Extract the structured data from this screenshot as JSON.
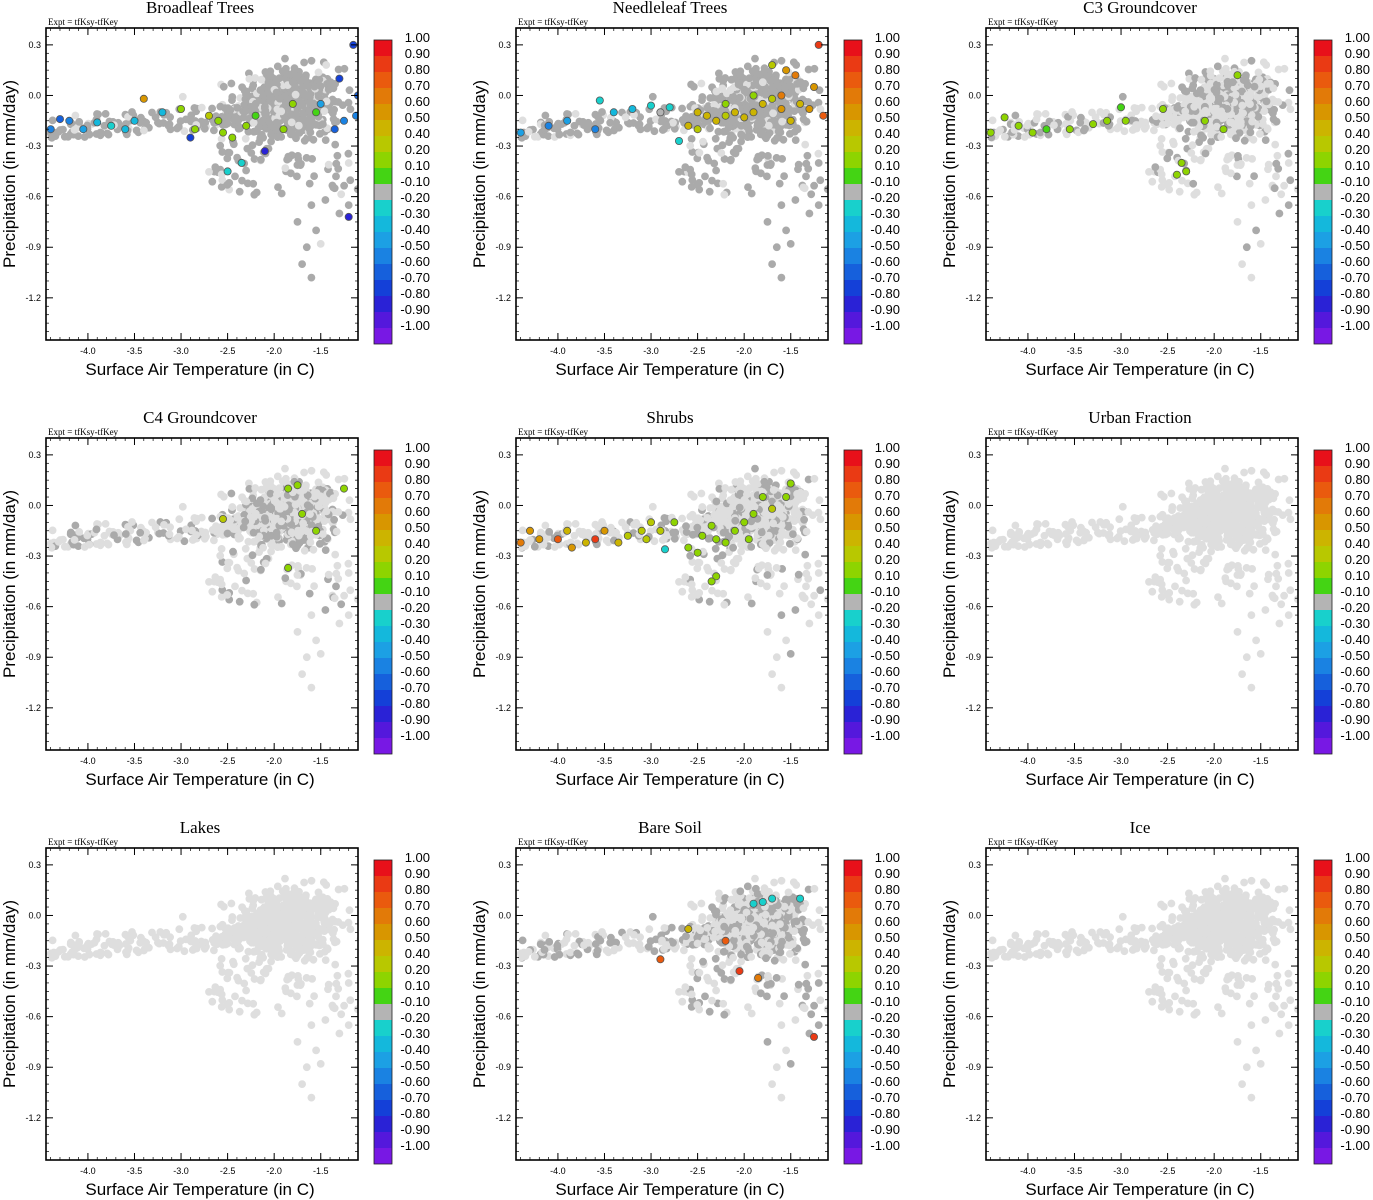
{
  "figure": {
    "experiment_label": "Expt = tfKsy-tfKey",
    "xlabel": "Surface Air Temperature (in C)",
    "ylabel": "Precipitation (in mm/day)",
    "colorbar": {
      "levels": [
        "1.00",
        "0.90",
        "0.80",
        "0.70",
        "0.60",
        "0.50",
        "0.40",
        "0.20",
        "0.10",
        "-0.10",
        "-0.20",
        "-0.30",
        "-0.40",
        "-0.50",
        "-0.60",
        "-0.70",
        "-0.80",
        "-0.90",
        "-1.00"
      ],
      "colors": [
        "#e8101a",
        "#ea3a14",
        "#ea5a0e",
        "#e27a08",
        "#d89600",
        "#ccb400",
        "#b8c800",
        "#8ed400",
        "#44d414",
        "#b4b4b4",
        "#18d0cc",
        "#14b8dc",
        "#1ca0e4",
        "#1a82e2",
        "#1660dc",
        "#1440d8",
        "#2a22d6",
        "#5418dc",
        "#7818e4"
      ]
    },
    "background_color": "#dedede",
    "neutral_color": "#aaaaaa"
  },
  "chart_data": [
    {
      "type": "scatter",
      "title": "Broadleaf Trees",
      "xlim": [
        -4.45,
        -1.1
      ],
      "ylim": [
        -1.45,
        0.4
      ],
      "xticks": [
        "-4.0",
        "-3.5",
        "-3.0",
        "-2.5",
        "-2.0",
        "-1.5"
      ],
      "yticks": [
        "0.3",
        "0.0",
        "-0.3",
        "-0.6",
        "-0.9",
        "-1.2"
      ],
      "xlabel": "Surface Air Temperature (in C)",
      "ylabel": "Precipitation (in mm/day)",
      "points": [
        [
          -4.4,
          -0.2,
          -0.55
        ],
        [
          -4.3,
          -0.14,
          -0.6
        ],
        [
          -4.2,
          -0.15,
          -0.5
        ],
        [
          -4.05,
          -0.2,
          -0.4
        ],
        [
          -3.9,
          -0.16,
          -0.3
        ],
        [
          -3.75,
          -0.18,
          -0.25
        ],
        [
          -3.6,
          -0.2,
          -0.3
        ],
        [
          -3.5,
          -0.15,
          -0.3
        ],
        [
          -3.4,
          -0.02,
          0.6
        ],
        [
          -3.2,
          -0.1,
          -0.3
        ],
        [
          -3.0,
          -0.08,
          0.2
        ],
        [
          -2.85,
          -0.2,
          0.15
        ],
        [
          -2.9,
          -0.25,
          -0.7
        ],
        [
          -2.7,
          -0.12,
          0.3
        ],
        [
          -2.6,
          -0.15,
          0.2
        ],
        [
          -2.55,
          -0.22,
          0.15
        ],
        [
          -2.45,
          -0.25,
          0.12
        ],
        [
          -2.3,
          -0.18,
          0.15
        ],
        [
          -2.2,
          -0.12,
          0.1
        ],
        [
          -2.35,
          -0.4,
          -0.2
        ],
        [
          -2.5,
          -0.45,
          -0.2
        ],
        [
          -2.1,
          -0.33,
          -0.8
        ],
        [
          -1.9,
          -0.2,
          0.12
        ],
        [
          -1.8,
          -0.05,
          0.2
        ],
        [
          -1.55,
          -0.1,
          0.1
        ],
        [
          -1.5,
          -0.05,
          -0.4
        ],
        [
          -1.35,
          -0.2,
          -0.6
        ],
        [
          -1.25,
          -0.15,
          -0.5
        ],
        [
          -1.2,
          -0.72,
          -0.85
        ],
        [
          -1.15,
          0.3,
          -0.75
        ],
        [
          -1.1,
          0.0,
          -0.6
        ],
        [
          -1.12,
          -0.12,
          -0.5
        ],
        [
          -1.3,
          0.1,
          -0.7
        ]
      ]
    },
    {
      "type": "scatter",
      "title": "Needleleaf Trees",
      "xlim": [
        -4.45,
        -1.1
      ],
      "ylim": [
        -1.45,
        0.4
      ],
      "xticks": [
        "-4.0",
        "-3.5",
        "-3.0",
        "-2.5",
        "-2.0",
        "-1.5"
      ],
      "yticks": [
        "0.3",
        "0.0",
        "-0.3",
        "-0.6",
        "-0.9",
        "-1.2"
      ],
      "xlabel": "Surface Air Temperature (in C)",
      "ylabel": "Precipitation (in mm/day)",
      "points": [
        [
          -4.4,
          -0.22,
          -0.4
        ],
        [
          -4.1,
          -0.18,
          -0.5
        ],
        [
          -3.9,
          -0.15,
          -0.4
        ],
        [
          -3.6,
          -0.2,
          -0.5
        ],
        [
          -3.4,
          -0.1,
          -0.3
        ],
        [
          -3.2,
          -0.08,
          -0.3
        ],
        [
          -3.0,
          -0.06,
          -0.25
        ],
        [
          -2.8,
          -0.07,
          -0.2
        ],
        [
          -2.6,
          -0.18,
          0.45
        ],
        [
          -2.5,
          -0.1,
          0.5
        ],
        [
          -2.4,
          -0.12,
          0.45
        ],
        [
          -2.3,
          -0.15,
          0.5
        ],
        [
          -2.2,
          -0.12,
          0.4
        ],
        [
          -2.1,
          -0.1,
          0.45
        ],
        [
          -2.0,
          -0.13,
          0.5
        ],
        [
          -1.9,
          -0.1,
          0.45
        ],
        [
          -1.8,
          -0.05,
          0.5
        ],
        [
          -1.7,
          -0.02,
          0.4
        ],
        [
          -1.6,
          -0.08,
          0.55
        ],
        [
          -1.5,
          -0.15,
          0.5
        ],
        [
          -1.4,
          -0.05,
          0.45
        ],
        [
          -1.3,
          -0.08,
          0.6
        ],
        [
          -1.6,
          0.0,
          0.7
        ],
        [
          -1.45,
          0.12,
          0.7
        ],
        [
          -1.2,
          0.3,
          0.9
        ],
        [
          -1.25,
          0.05,
          0.6
        ],
        [
          -1.15,
          -0.12,
          0.8
        ],
        [
          -1.55,
          0.15,
          0.6
        ],
        [
          -2.7,
          -0.27,
          -0.2
        ],
        [
          -2.5,
          -0.2,
          0.3
        ],
        [
          -2.2,
          -0.05,
          0.2
        ],
        [
          -1.9,
          0.0,
          0.2
        ],
        [
          -1.7,
          0.18,
          0.3
        ],
        [
          -3.55,
          -0.03,
          -0.2
        ],
        [
          -2.9,
          -0.1,
          -0.15
        ]
      ]
    },
    {
      "type": "scatter",
      "title": "C3 Groundcover",
      "xlim": [
        -4.45,
        -1.1
      ],
      "ylim": [
        -1.45,
        0.4
      ],
      "xticks": [
        "-4.0",
        "-3.5",
        "-3.0",
        "-2.5",
        "-2.0",
        "-1.5"
      ],
      "yticks": [
        "0.3",
        "0.0",
        "-0.3",
        "-0.6",
        "-0.9",
        "-1.2"
      ],
      "xlabel": "Surface Air Temperature (in C)",
      "ylabel": "Precipitation (in mm/day)",
      "points": [
        [
          -4.4,
          -0.22,
          0.15
        ],
        [
          -4.25,
          -0.13,
          0.12
        ],
        [
          -4.1,
          -0.18,
          0.15
        ],
        [
          -3.95,
          -0.22,
          0.12
        ],
        [
          -3.8,
          -0.2,
          0.1
        ],
        [
          -3.55,
          -0.2,
          0.12
        ],
        [
          -3.3,
          -0.17,
          0.15
        ],
        [
          -3.15,
          -0.15,
          0.12
        ],
        [
          -3.0,
          -0.07,
          0.1
        ],
        [
          -2.95,
          -0.15,
          0.12
        ],
        [
          -2.55,
          -0.08,
          0.15
        ],
        [
          -2.35,
          -0.4,
          0.15
        ],
        [
          -2.4,
          -0.47,
          0.15
        ],
        [
          -2.3,
          -0.45,
          0.12
        ],
        [
          -1.9,
          -0.2,
          0.15
        ],
        [
          -1.75,
          0.12,
          0.15
        ],
        [
          -2.1,
          -0.15,
          0.12
        ]
      ]
    },
    {
      "type": "scatter",
      "title": "C4 Groundcover",
      "xlim": [
        -4.45,
        -1.1
      ],
      "ylim": [
        -1.45,
        0.4
      ],
      "xticks": [
        "-4.0",
        "-3.5",
        "-3.0",
        "-2.5",
        "-2.0",
        "-1.5"
      ],
      "yticks": [
        "0.3",
        "0.0",
        "-0.3",
        "-0.6",
        "-0.9",
        "-1.2"
      ],
      "xlabel": "Surface Air Temperature (in C)",
      "ylabel": "Precipitation (in mm/day)",
      "points": [
        [
          -2.55,
          -0.08,
          0.3
        ],
        [
          -1.85,
          0.1,
          0.2
        ],
        [
          -1.75,
          0.12,
          0.15
        ],
        [
          -1.7,
          -0.05,
          0.12
        ],
        [
          -1.55,
          -0.15,
          0.15
        ],
        [
          -1.25,
          0.1,
          0.15
        ],
        [
          -1.85,
          -0.37,
          0.15
        ]
      ]
    },
    {
      "type": "scatter",
      "title": "Shrubs",
      "xlim": [
        -4.45,
        -1.1
      ],
      "ylim": [
        -1.45,
        0.4
      ],
      "xticks": [
        "-4.0",
        "-3.5",
        "-3.0",
        "-2.5",
        "-2.0",
        "-1.5"
      ],
      "yticks": [
        "0.3",
        "0.0",
        "-0.3",
        "-0.6",
        "-0.9",
        "-1.2"
      ],
      "xlabel": "Surface Air Temperature (in C)",
      "ylabel": "Precipitation (in mm/day)",
      "points": [
        [
          -4.4,
          -0.22,
          0.7
        ],
        [
          -4.3,
          -0.15,
          0.55
        ],
        [
          -4.2,
          -0.2,
          0.6
        ],
        [
          -4.0,
          -0.2,
          0.8
        ],
        [
          -3.9,
          -0.15,
          0.5
        ],
        [
          -3.85,
          -0.25,
          0.6
        ],
        [
          -3.7,
          -0.22,
          0.5
        ],
        [
          -3.6,
          -0.2,
          0.85
        ],
        [
          -3.5,
          -0.15,
          0.6
        ],
        [
          -3.35,
          -0.22,
          0.5
        ],
        [
          -3.25,
          -0.18,
          0.4
        ],
        [
          -3.1,
          -0.15,
          0.35
        ],
        [
          -3.05,
          -0.2,
          0.3
        ],
        [
          -3.0,
          -0.1,
          0.25
        ],
        [
          -2.9,
          -0.15,
          0.3
        ],
        [
          -2.85,
          -0.26,
          -0.2
        ],
        [
          -2.75,
          -0.1,
          0.12
        ],
        [
          -2.6,
          -0.25,
          0.15
        ],
        [
          -2.5,
          -0.28,
          0.12
        ],
        [
          -2.45,
          -0.18,
          0.15
        ],
        [
          -2.35,
          -0.12,
          0.12
        ],
        [
          -2.3,
          -0.2,
          0.15
        ],
        [
          -2.2,
          -0.22,
          0.15
        ],
        [
          -2.1,
          -0.15,
          0.12
        ],
        [
          -2.0,
          -0.1,
          0.15
        ],
        [
          -1.9,
          -0.05,
          0.12
        ],
        [
          -1.8,
          0.05,
          0.15
        ],
        [
          -1.7,
          -0.02,
          0.3
        ],
        [
          -1.55,
          0.05,
          0.15
        ],
        [
          -1.5,
          0.13,
          0.15
        ],
        [
          -2.3,
          -0.42,
          0.2
        ],
        [
          -2.35,
          -0.45,
          0.15
        ],
        [
          -1.95,
          -0.2,
          0.15
        ]
      ]
    },
    {
      "type": "scatter",
      "title": "Urban Fraction",
      "xlim": [
        -4.45,
        -1.1
      ],
      "ylim": [
        -1.45,
        0.4
      ],
      "xticks": [
        "-4.0",
        "-3.5",
        "-3.0",
        "-2.5",
        "-2.0",
        "-1.5"
      ],
      "yticks": [
        "0.3",
        "0.0",
        "-0.3",
        "-0.6",
        "-0.9",
        "-1.2"
      ],
      "xlabel": "Surface Air Temperature (in C)",
      "ylabel": "Precipitation (in mm/day)",
      "points": []
    },
    {
      "type": "scatter",
      "title": "Lakes",
      "xlim": [
        -4.45,
        -1.1
      ],
      "ylim": [
        -1.45,
        0.4
      ],
      "xticks": [
        "-4.0",
        "-3.5",
        "-3.0",
        "-2.5",
        "-2.0",
        "-1.5"
      ],
      "yticks": [
        "0.3",
        "0.0",
        "-0.3",
        "-0.6",
        "-0.9",
        "-1.2"
      ],
      "xlabel": "Surface Air Temperature (in C)",
      "ylabel": "Precipitation (in mm/day)",
      "points": []
    },
    {
      "type": "scatter",
      "title": "Bare Soil",
      "xlim": [
        -4.45,
        -1.1
      ],
      "ylim": [
        -1.45,
        0.4
      ],
      "xticks": [
        "-4.0",
        "-3.5",
        "-3.0",
        "-2.5",
        "-2.0",
        "-1.5"
      ],
      "yticks": [
        "0.3",
        "0.0",
        "-0.3",
        "-0.6",
        "-0.9",
        "-1.2"
      ],
      "xlabel": "Surface Air Temperature (in C)",
      "ylabel": "Precipitation (in mm/day)",
      "points": [
        [
          -2.9,
          -0.26,
          0.8
        ],
        [
          -2.6,
          -0.08,
          0.5
        ],
        [
          -2.2,
          -0.15,
          0.75
        ],
        [
          -2.05,
          -0.33,
          0.85
        ],
        [
          -1.85,
          -0.37,
          0.7
        ],
        [
          -1.8,
          0.08,
          -0.2
        ],
        [
          -1.7,
          0.1,
          -0.25
        ],
        [
          -1.9,
          0.07,
          -0.2
        ],
        [
          -1.4,
          0.1,
          -0.2
        ],
        [
          -1.25,
          -0.72,
          0.9
        ]
      ]
    },
    {
      "type": "scatter",
      "title": "Ice",
      "xlim": [
        -4.45,
        -1.1
      ],
      "ylim": [
        -1.45,
        0.4
      ],
      "xticks": [
        "-4.0",
        "-3.5",
        "-3.0",
        "-2.5",
        "-2.0",
        "-1.5"
      ],
      "yticks": [
        "0.3",
        "0.0",
        "-0.3",
        "-0.6",
        "-0.9",
        "-1.2"
      ],
      "xlabel": "Surface Air Temperature (in C)",
      "ylabel": "Precipitation (in mm/day)",
      "points": []
    }
  ]
}
